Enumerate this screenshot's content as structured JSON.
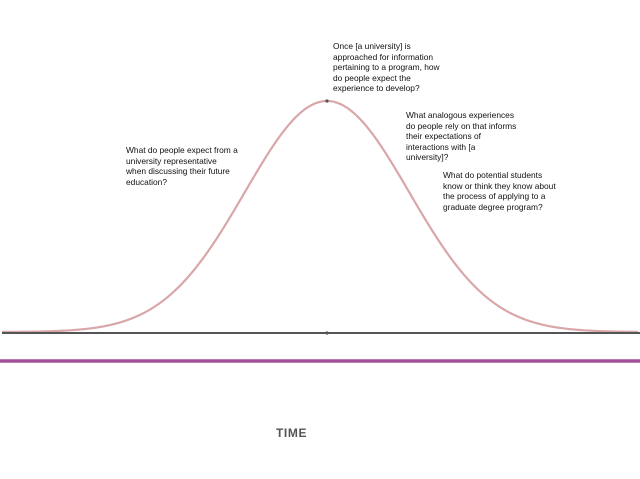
{
  "annotations": {
    "top": "Once [a university] is\napproached for information\npertaining to a program, how\ndo people expect the\nexperience to develop?",
    "right_upper": "What analogous experiences\ndo people rely on that informs\ntheir expectations of\ninteractions with [a\nuniversity]?",
    "left": "What do people expect from a\nuniversity representative\nwhen discussing their future\neducation?",
    "right_lower": "What do potential students\nknow or think they know about\nthe process of applying to a\ngraduate degree program?"
  },
  "axis": {
    "title": "TIME"
  },
  "colors": {
    "curve": "#d9a7a9",
    "baseline": "#555555",
    "purple_bar": "#a2509a",
    "marker": "#555555"
  }
}
